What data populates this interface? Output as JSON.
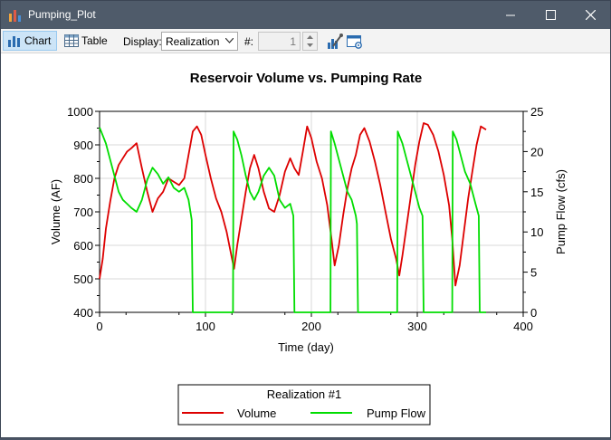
{
  "window": {
    "title": "Pumping_Plot",
    "controls": [
      "minimize-icon",
      "maximize-icon",
      "close-icon"
    ]
  },
  "toolbar": {
    "chart_label": "Chart",
    "table_label": "Table",
    "display_label": "Display:",
    "display_value": "Realization",
    "realization_label": "#:",
    "realization_value": "1"
  },
  "colors": {
    "volume": "#dd0000",
    "pump_flow": "#00dd00",
    "active_tab": "#cce4f7"
  },
  "chart_data": {
    "type": "line",
    "title": "Reservoir Volume vs. Pumping Rate",
    "xlabel": "Time (day)",
    "ylabel": "Volume (AF)",
    "y2label": "Pump Flow (cfs)",
    "xlim": [
      0,
      400
    ],
    "ylim": [
      400,
      1000
    ],
    "y2lim": [
      0,
      25
    ],
    "x_ticks": [
      0,
      100,
      200,
      300,
      400
    ],
    "y_ticks": [
      400,
      500,
      600,
      700,
      800,
      900,
      1000
    ],
    "y2_ticks": [
      0,
      5,
      10,
      15,
      20,
      25
    ],
    "grid": true,
    "legend": {
      "title": "Realization #1",
      "placement": "bottom-center"
    },
    "series": [
      {
        "name": "Volume",
        "axis": "left",
        "x": [
          0,
          3,
          6,
          10,
          14,
          18,
          22,
          26,
          30,
          35,
          40,
          45,
          50,
          55,
          60,
          65,
          70,
          75,
          80,
          84,
          88,
          92,
          96,
          100,
          105,
          110,
          115,
          120,
          125,
          127,
          130,
          134,
          138,
          142,
          146,
          150,
          155,
          160,
          165,
          170,
          175,
          180,
          184,
          188,
          192,
          196,
          200,
          205,
          210,
          215,
          219,
          222,
          226,
          230,
          234,
          238,
          242,
          246,
          250,
          255,
          260,
          265,
          270,
          275,
          280,
          283,
          286,
          290,
          294,
          298,
          302,
          306,
          310,
          315,
          320,
          325,
          330,
          333,
          336,
          340,
          344,
          348,
          352,
          356,
          360,
          365
        ],
        "values": [
          500,
          560,
          650,
          730,
          800,
          840,
          860,
          880,
          890,
          905,
          830,
          760,
          700,
          740,
          760,
          800,
          790,
          780,
          800,
          870,
          940,
          955,
          930,
          870,
          800,
          740,
          700,
          640,
          560,
          530,
          600,
          680,
          760,
          830,
          870,
          830,
          760,
          710,
          700,
          750,
          820,
          860,
          830,
          810,
          880,
          955,
          920,
          850,
          800,
          720,
          620,
          540,
          600,
          690,
          770,
          830,
          870,
          930,
          950,
          910,
          850,
          780,
          700,
          620,
          560,
          510,
          570,
          660,
          750,
          840,
          910,
          965,
          960,
          930,
          880,
          810,
          720,
          620,
          480,
          540,
          640,
          740,
          820,
          900,
          955,
          945
        ]
      },
      {
        "name": "Pump Flow",
        "axis": "right",
        "x": [
          0,
          3,
          6,
          10,
          14,
          18,
          22,
          26,
          30,
          35,
          40,
          45,
          50,
          55,
          60,
          65,
          70,
          75,
          80,
          84,
          87,
          88,
          126,
          126.5,
          130,
          134,
          138,
          142,
          146,
          150,
          155,
          160,
          165,
          170,
          175,
          180,
          183,
          184,
          218,
          218.5,
          222,
          226,
          230,
          234,
          238,
          242,
          243,
          244,
          281,
          281.5,
          286,
          290,
          294,
          298,
          302,
          305,
          306,
          333,
          333.5,
          337,
          341,
          345,
          350,
          355,
          358,
          359,
          365
        ],
        "values": [
          23,
          22,
          21,
          19,
          17,
          15,
          14,
          13.5,
          13,
          12.5,
          14,
          16.5,
          18,
          17.2,
          16,
          16.8,
          15.5,
          15,
          15.5,
          14,
          11.5,
          0,
          0,
          22.5,
          21.5,
          19.5,
          17,
          15,
          14,
          15,
          17,
          18,
          17,
          14,
          13,
          13.5,
          12,
          0,
          0,
          22.5,
          21,
          19,
          17,
          15,
          14,
          12,
          11,
          0,
          0,
          22.5,
          21,
          19,
          17,
          15,
          13,
          12,
          0,
          0,
          22.5,
          21.5,
          19.5,
          17.5,
          16,
          13.5,
          12,
          0,
          0
        ]
      }
    ]
  }
}
